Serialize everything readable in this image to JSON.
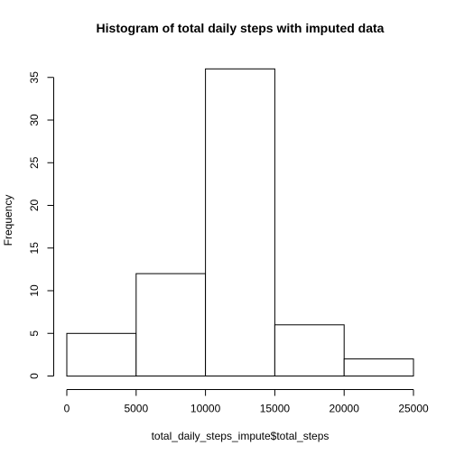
{
  "chart_data": {
    "type": "bar",
    "subtype": "histogram",
    "title": "Histogram of total daily steps with imputed data",
    "xlabel": "total_daily_steps_impute$total_steps",
    "ylabel": "Frequency",
    "bins": [
      {
        "start": 0,
        "end": 5000,
        "count": 5
      },
      {
        "start": 5000,
        "end": 10000,
        "count": 12
      },
      {
        "start": 10000,
        "end": 15000,
        "count": 36
      },
      {
        "start": 15000,
        "end": 20000,
        "count": 6
      },
      {
        "start": 20000,
        "end": 25000,
        "count": 2
      }
    ],
    "xlim": [
      0,
      25000
    ],
    "ylim": [
      0,
      36
    ],
    "xticks": [
      0,
      5000,
      10000,
      15000,
      20000,
      25000
    ],
    "xtick_labels": [
      "0",
      "5000",
      "10000",
      "15000",
      "20000",
      "25000"
    ],
    "yticks": [
      0,
      5,
      10,
      15,
      20,
      25,
      30,
      35
    ],
    "ytick_labels": [
      "0",
      "5",
      "10",
      "15",
      "20",
      "25",
      "30",
      "35"
    ],
    "grid": false,
    "colors": {
      "bar_fill": "#ffffff",
      "bar_stroke": "#000000",
      "axis": "#000000",
      "background": "#ffffff"
    }
  }
}
